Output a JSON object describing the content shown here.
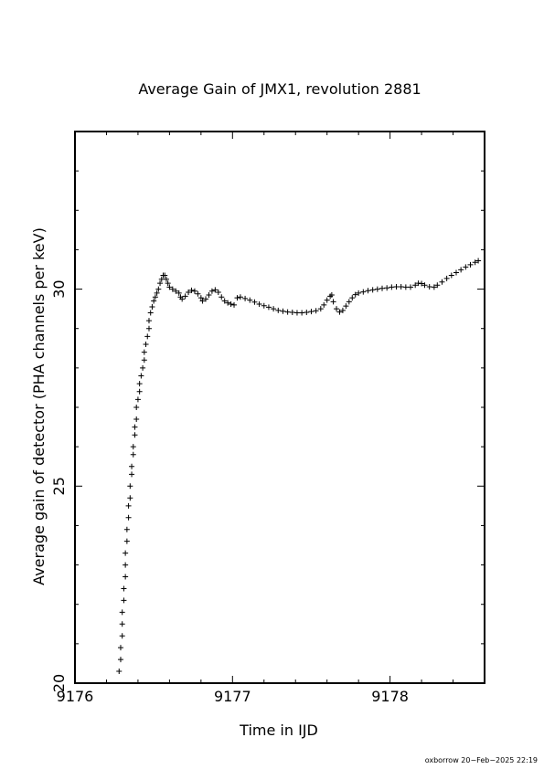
{
  "chart_data": {
    "type": "scatter",
    "title": "Average Gain of JMX1, revolution 2881",
    "xlabel": "Time in IJD",
    "ylabel": "Average gain of detector (PHA channels per keV)",
    "xlim": [
      9176,
      9178.6
    ],
    "ylim": [
      20,
      34
    ],
    "xticks": [
      9176,
      9177,
      9178
    ],
    "xtick_labels": [
      "9176",
      "9177",
      "9178"
    ],
    "yticks": [
      20,
      25,
      30
    ],
    "ytick_labels": [
      "20",
      "25",
      "30"
    ],
    "marker": "plus",
    "color": "#000000",
    "grid": false,
    "legend": "none",
    "points": [
      [
        9176.28,
        20.3
      ],
      [
        9176.29,
        20.6
      ],
      [
        9176.29,
        20.9
      ],
      [
        9176.3,
        21.2
      ],
      [
        9176.3,
        21.5
      ],
      [
        9176.3,
        21.8
      ],
      [
        9176.31,
        22.1
      ],
      [
        9176.31,
        22.4
      ],
      [
        9176.32,
        22.7
      ],
      [
        9176.32,
        23.0
      ],
      [
        9176.32,
        23.3
      ],
      [
        9176.33,
        23.6
      ],
      [
        9176.33,
        23.9
      ],
      [
        9176.34,
        24.2
      ],
      [
        9176.34,
        24.5
      ],
      [
        9176.35,
        24.7
      ],
      [
        9176.35,
        25.0
      ],
      [
        9176.36,
        25.3
      ],
      [
        9176.36,
        25.5
      ],
      [
        9176.37,
        25.8
      ],
      [
        9176.37,
        26.0
      ],
      [
        9176.38,
        26.3
      ],
      [
        9176.38,
        26.5
      ],
      [
        9176.39,
        26.7
      ],
      [
        9176.39,
        27.0
      ],
      [
        9176.4,
        27.2
      ],
      [
        9176.41,
        27.4
      ],
      [
        9176.41,
        27.6
      ],
      [
        9176.42,
        27.8
      ],
      [
        9176.43,
        28.0
      ],
      [
        9176.44,
        28.2
      ],
      [
        9176.44,
        28.4
      ],
      [
        9176.45,
        28.6
      ],
      [
        9176.46,
        28.8
      ],
      [
        9176.47,
        29.0
      ],
      [
        9176.47,
        29.2
      ],
      [
        9176.48,
        29.4
      ],
      [
        9176.49,
        29.55
      ],
      [
        9176.5,
        29.7
      ],
      [
        9176.51,
        29.8
      ],
      [
        9176.52,
        29.9
      ],
      [
        9176.53,
        30.0
      ],
      [
        9176.54,
        30.15
      ],
      [
        9176.55,
        30.25
      ],
      [
        9176.56,
        30.35
      ],
      [
        9176.57,
        30.35
      ],
      [
        9176.58,
        30.25
      ],
      [
        9176.59,
        30.15
      ],
      [
        9176.6,
        30.05
      ],
      [
        9176.62,
        30.0
      ],
      [
        9176.64,
        29.95
      ],
      [
        9176.66,
        29.9
      ],
      [
        9176.67,
        29.8
      ],
      [
        9176.68,
        29.75
      ],
      [
        9176.7,
        29.82
      ],
      [
        9176.72,
        29.92
      ],
      [
        9176.74,
        29.97
      ],
      [
        9176.76,
        29.95
      ],
      [
        9176.78,
        29.88
      ],
      [
        9176.8,
        29.78
      ],
      [
        9176.81,
        29.7
      ],
      [
        9176.83,
        29.75
      ],
      [
        9176.85,
        29.85
      ],
      [
        9176.87,
        29.95
      ],
      [
        9176.89,
        29.98
      ],
      [
        9176.91,
        29.92
      ],
      [
        9176.93,
        29.8
      ],
      [
        9176.95,
        29.7
      ],
      [
        9176.97,
        29.65
      ],
      [
        9176.99,
        29.62
      ],
      [
        9177.01,
        29.6
      ],
      [
        9177.03,
        29.78
      ],
      [
        9177.05,
        29.8
      ],
      [
        9177.08,
        29.76
      ],
      [
        9177.11,
        29.72
      ],
      [
        9177.14,
        29.67
      ],
      [
        9177.17,
        29.62
      ],
      [
        9177.2,
        29.58
      ],
      [
        9177.23,
        29.54
      ],
      [
        9177.26,
        29.5
      ],
      [
        9177.29,
        29.46
      ],
      [
        9177.32,
        29.44
      ],
      [
        9177.35,
        29.42
      ],
      [
        9177.38,
        29.41
      ],
      [
        9177.41,
        29.4
      ],
      [
        9177.44,
        29.4
      ],
      [
        9177.47,
        29.41
      ],
      [
        9177.5,
        29.43
      ],
      [
        9177.53,
        29.45
      ],
      [
        9177.56,
        29.5
      ],
      [
        9177.58,
        29.6
      ],
      [
        9177.6,
        29.72
      ],
      [
        9177.62,
        29.82
      ],
      [
        9177.63,
        29.85
      ],
      [
        9177.64,
        29.68
      ],
      [
        9177.66,
        29.5
      ],
      [
        9177.68,
        29.42
      ],
      [
        9177.7,
        29.46
      ],
      [
        9177.72,
        29.57
      ],
      [
        9177.74,
        29.68
      ],
      [
        9177.76,
        29.78
      ],
      [
        9177.78,
        29.86
      ],
      [
        9177.8,
        29.9
      ],
      [
        9177.83,
        29.93
      ],
      [
        9177.86,
        29.96
      ],
      [
        9177.89,
        29.98
      ],
      [
        9177.92,
        30.0
      ],
      [
        9177.95,
        30.02
      ],
      [
        9177.98,
        30.03
      ],
      [
        9178.01,
        30.05
      ],
      [
        9178.04,
        30.06
      ],
      [
        9178.07,
        30.06
      ],
      [
        9178.1,
        30.05
      ],
      [
        9178.13,
        30.05
      ],
      [
        9178.16,
        30.1
      ],
      [
        9178.18,
        30.15
      ],
      [
        9178.2,
        30.14
      ],
      [
        9178.22,
        30.1
      ],
      [
        9178.25,
        30.06
      ],
      [
        9178.28,
        30.05
      ],
      [
        9178.3,
        30.1
      ],
      [
        9178.33,
        30.18
      ],
      [
        9178.36,
        30.27
      ],
      [
        9178.39,
        30.35
      ],
      [
        9178.42,
        30.42
      ],
      [
        9178.45,
        30.49
      ],
      [
        9178.48,
        30.56
      ],
      [
        9178.51,
        30.62
      ],
      [
        9178.54,
        30.68
      ],
      [
        9178.56,
        30.72
      ]
    ]
  },
  "footer": {
    "stamp": "oxborrow 20−Feb−2025 22:19"
  }
}
